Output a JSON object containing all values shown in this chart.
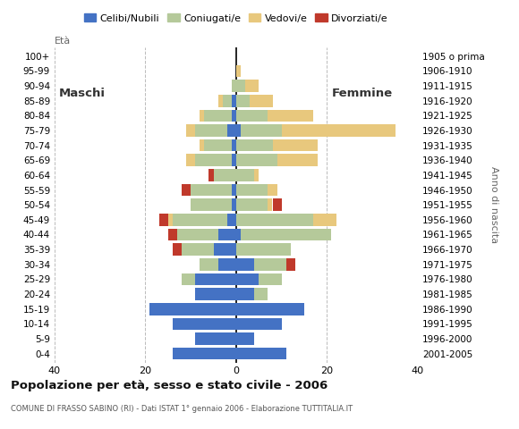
{
  "age_groups": [
    "0-4",
    "5-9",
    "10-14",
    "15-19",
    "20-24",
    "25-29",
    "30-34",
    "35-39",
    "40-44",
    "45-49",
    "50-54",
    "55-59",
    "60-64",
    "65-69",
    "70-74",
    "75-79",
    "80-84",
    "85-89",
    "90-94",
    "95-99",
    "100+"
  ],
  "birth_years": [
    "2001-2005",
    "1996-2000",
    "1991-1995",
    "1986-1990",
    "1981-1985",
    "1976-1980",
    "1971-1975",
    "1966-1970",
    "1961-1965",
    "1956-1960",
    "1951-1955",
    "1946-1950",
    "1941-1945",
    "1936-1940",
    "1931-1935",
    "1926-1930",
    "1921-1925",
    "1916-1920",
    "1911-1915",
    "1906-1910",
    "1905 o prima"
  ],
  "colors": {
    "celibe": "#4472c4",
    "coniugato": "#b5c99a",
    "vedovo": "#e8c87d",
    "divorziato": "#c0392b"
  },
  "males": {
    "celibe": [
      14,
      9,
      14,
      19,
      9,
      9,
      4,
      5,
      4,
      2,
      1,
      1,
      0,
      1,
      1,
      2,
      1,
      1,
      0,
      0,
      0
    ],
    "coniugato": [
      0,
      0,
      0,
      0,
      0,
      3,
      4,
      7,
      9,
      12,
      9,
      9,
      5,
      8,
      6,
      7,
      6,
      2,
      1,
      0,
      0
    ],
    "vedovo": [
      0,
      0,
      0,
      0,
      0,
      0,
      0,
      0,
      0,
      1,
      0,
      0,
      0,
      2,
      1,
      2,
      1,
      1,
      0,
      0,
      0
    ],
    "divorziato": [
      0,
      0,
      0,
      0,
      0,
      0,
      0,
      2,
      2,
      2,
      0,
      2,
      1,
      0,
      0,
      0,
      0,
      0,
      0,
      0,
      0
    ]
  },
  "females": {
    "celibe": [
      11,
      4,
      10,
      15,
      4,
      5,
      4,
      0,
      1,
      0,
      0,
      0,
      0,
      0,
      0,
      1,
      0,
      0,
      0,
      0,
      0
    ],
    "coniugato": [
      0,
      0,
      0,
      0,
      3,
      5,
      7,
      12,
      20,
      17,
      7,
      7,
      4,
      9,
      8,
      9,
      7,
      3,
      2,
      0,
      0
    ],
    "vedovo": [
      0,
      0,
      0,
      0,
      0,
      0,
      0,
      0,
      0,
      5,
      1,
      2,
      1,
      9,
      10,
      25,
      10,
      5,
      3,
      1,
      0
    ],
    "divorziato": [
      0,
      0,
      0,
      0,
      0,
      0,
      2,
      0,
      0,
      0,
      2,
      0,
      0,
      0,
      0,
      0,
      0,
      0,
      0,
      0,
      0
    ]
  },
  "xlim": 40,
  "title": "Popolazione per età, sesso e stato civile - 2006",
  "subtitle": "COMUNE DI FRASSO SABINO (RI) - Dati ISTAT 1° gennaio 2006 - Elaborazione TUTTITALIA.IT",
  "ylabel_left": "Età",
  "ylabel_right": "Anno di nascita",
  "label_maschi": "Maschi",
  "label_femmine": "Femmine",
  "legend_labels": [
    "Celibi/Nubili",
    "Coniugati/e",
    "Vedovi/e",
    "Divorziati/e"
  ]
}
